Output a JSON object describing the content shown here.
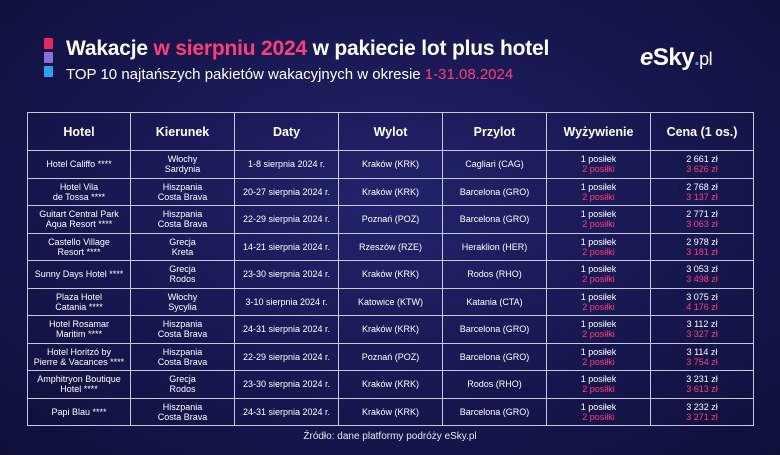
{
  "header": {
    "title_part1": "Wakacje",
    "title_part2": "w sierpniu 2024",
    "title_part3": "w pakiecie lot plus hotel",
    "subtitle_part1": "TOP 10 najtańszych pakietów wakacyjnych w okresie",
    "subtitle_part2": "1-31.08.2024",
    "logo": {
      "e": "e",
      "sky": "Sky",
      "dot": ".",
      "pl": "pl"
    }
  },
  "table": {
    "columns": [
      "Hotel",
      "Kierunek",
      "Daty",
      "Wylot",
      "Przylot",
      "Wyżywienie",
      "Cena (1 os.)"
    ],
    "rows": [
      {
        "hotel": [
          "Hotel Califfo ****"
        ],
        "kierunek": [
          "Włochy",
          "Sardynia"
        ],
        "daty": "1-8 sierpnia 2024 r.",
        "wylot": "Kraków (KRK)",
        "przylot": "Cagliari (CAG)",
        "wyz1": "1 posiłek",
        "wyz2": "2 posiłki",
        "cena1": "2 661 zł",
        "cena2": "3 626 zł"
      },
      {
        "hotel": [
          "Hotel Vila",
          "de Tossa ****"
        ],
        "kierunek": [
          "Hiszpania",
          "Costa Brava"
        ],
        "daty": "20-27 sierpnia 2024 r.",
        "wylot": "Kraków (KRK)",
        "przylot": "Barcelona (GRO)",
        "wyz1": "1 posiłek",
        "wyz2": "2 posiłki",
        "cena1": "2 768 zł",
        "cena2": "3 137 zł"
      },
      {
        "hotel": [
          "Guitart Central Park",
          "Aqua Resort ****"
        ],
        "kierunek": [
          "Hiszpania",
          "Costa Brava"
        ],
        "daty": "22-29 sierpnia 2024 r.",
        "wylot": "Poznań (POZ)",
        "przylot": "Barcelona (GRO)",
        "wyz1": "1 posiłek",
        "wyz2": "2 posiłki",
        "cena1": "2 771 zł",
        "cena2": "3 063 zł"
      },
      {
        "hotel": [
          "Castello Village",
          "Resort ****"
        ],
        "kierunek": [
          "Grecja",
          "Kreta"
        ],
        "daty": "14-21 sierpnia 2024 r.",
        "wylot": "Rzeszów (RZE)",
        "przylot": "Heraklion (HER)",
        "wyz1": "1 posiłek",
        "wyz2": "2 posiłki",
        "cena1": "2 978 zł",
        "cena2": "3 181 zł"
      },
      {
        "hotel": [
          "Sunny Days Hotel ****"
        ],
        "kierunek": [
          "Grecja",
          "Rodos"
        ],
        "daty": "23-30 sierpnia 2024 r.",
        "wylot": "Kraków (KRK)",
        "przylot": "Rodos (RHO)",
        "wyz1": "1 posiłek",
        "wyz2": "2 posiłki",
        "cena1": "3 053 zł",
        "cena2": "3 498 zł"
      },
      {
        "hotel": [
          "Plaza Hotel",
          "Catania ****"
        ],
        "kierunek": [
          "Włochy",
          "Sycylia"
        ],
        "daty": "3-10 sierpnia 2024 r.",
        "wylot": "Katowice (KTW)",
        "przylot": "Katania (CTA)",
        "wyz1": "1 posiłek",
        "wyz2": "2 posiłki",
        "cena1": "3 075 zł",
        "cena2": "4 176 zł"
      },
      {
        "hotel": [
          "Hotel Rosamar",
          "Maritim ****"
        ],
        "kierunek": [
          "Hiszpania",
          "Costa Brava"
        ],
        "daty": "24-31 sierpnia 2024 r.",
        "wylot": "Kraków (KRK)",
        "przylot": "Barcelona (GRO)",
        "wyz1": "1 posiłek",
        "wyz2": "2 posiłki",
        "cena1": "3 112 zł",
        "cena2": "3 327 zł"
      },
      {
        "hotel": [
          "Hotel Horitzó by",
          "Pierre & Vacances ****"
        ],
        "kierunek": [
          "Hiszpania",
          "Costa Brava"
        ],
        "daty": "22-29 sierpnia 2024 r.",
        "wylot": "Poznań (POZ)",
        "przylot": "Barcelona (GRO)",
        "wyz1": "1 posiłek",
        "wyz2": "2 posiłki",
        "cena1": "3 114 zł",
        "cena2": "3 754 zł"
      },
      {
        "hotel": [
          "Amphitryon Boutique",
          "Hotel ****"
        ],
        "kierunek": [
          "Grecja",
          "Rodos"
        ],
        "daty": "23-30 sierpnia 2024 r.",
        "wylot": "Kraków (KRK)",
        "przylot": "Rodos (RHO)",
        "wyz1": "1 posiłek",
        "wyz2": "2 posiłki",
        "cena1": "3 231 zł",
        "cena2": "3 613 zł"
      },
      {
        "hotel": [
          "Papi Blau ****"
        ],
        "kierunek": [
          "Hiszpania",
          "Costa Brava"
        ],
        "daty": "24-31 sierpnia 2024 r.",
        "wylot": "Kraków (KRK)",
        "przylot": "Barcelona (GRO)",
        "wyz1": "1 posiłek",
        "wyz2": "2 posiłki",
        "cena1": "3 232 zł",
        "cena2": "3 271 zł"
      }
    ]
  },
  "footer": {
    "source": "Źródło: dane platformy podróży eSky.pl"
  },
  "colors": {
    "accent_pink": "#ff3d78",
    "background": "#171750",
    "logo_blue": "#2aa3ef"
  }
}
